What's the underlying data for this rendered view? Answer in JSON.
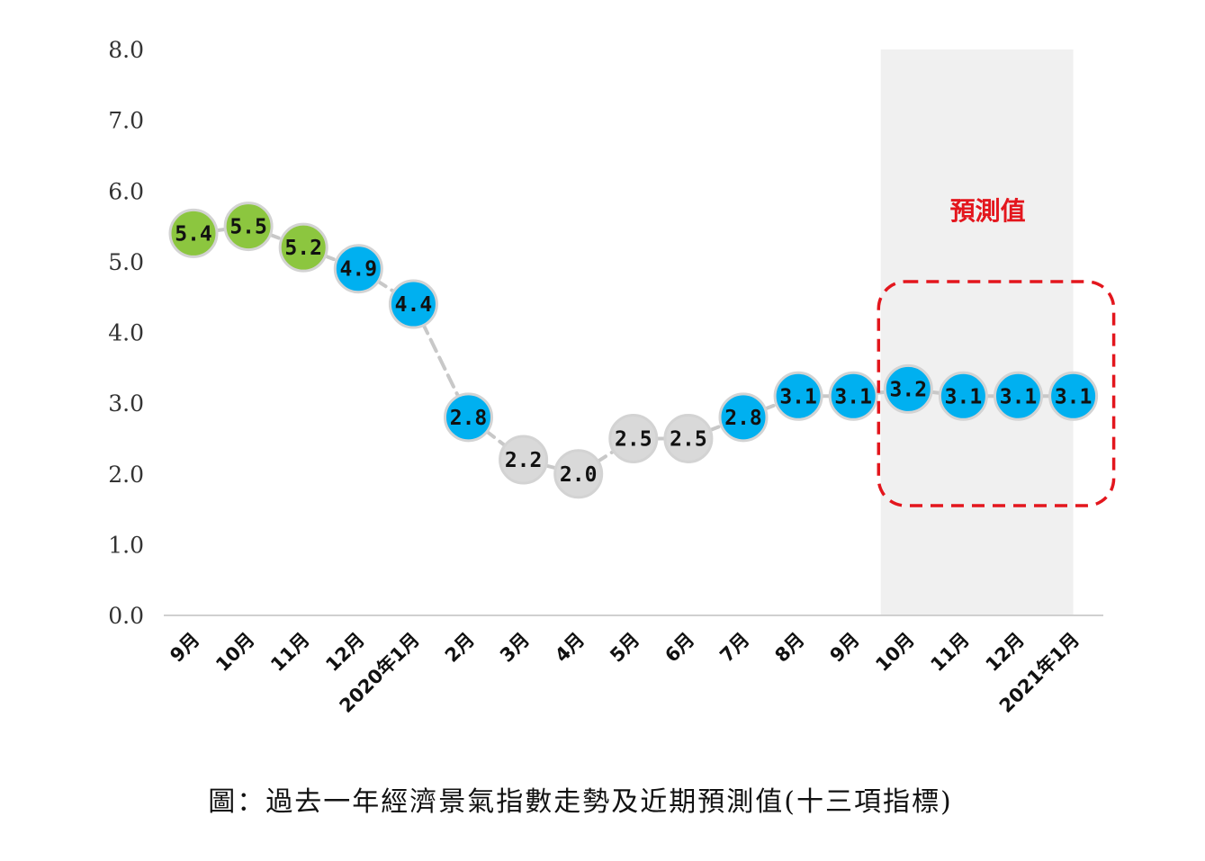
{
  "chart_data": {
    "type": "line",
    "categories": [
      "9月",
      "10月",
      "11月",
      "12月",
      "2020年1月",
      "2月",
      "3月",
      "4月",
      "5月",
      "6月",
      "7月",
      "8月",
      "9月",
      "10月",
      "11月",
      "12月",
      "2021年1月"
    ],
    "values": [
      5.4,
      5.5,
      5.2,
      4.9,
      4.4,
      2.8,
      2.2,
      2.0,
      2.5,
      2.5,
      2.8,
      3.1,
      3.1,
      3.2,
      3.1,
      3.1,
      3.1
    ],
    "value_labels": [
      "5.4",
      "5.5",
      "5.2",
      "4.9",
      "4.4",
      "2.8",
      "2.2",
      "2.0",
      "2.5",
      "2.5",
      "2.8",
      "3.1",
      "3.1",
      "3.2",
      "3.1",
      "3.1",
      "3.1"
    ],
    "point_colors": [
      "#8cc63f",
      "#8cc63f",
      "#8cc63f",
      "#00b0f0",
      "#00b0f0",
      "#00b0f0",
      "#d9d9d9",
      "#d9d9d9",
      "#d9d9d9",
      "#d9d9d9",
      "#00b0f0",
      "#00b0f0",
      "#00b0f0",
      "#00b0f0",
      "#00b0f0",
      "#00b0f0",
      "#00b0f0"
    ],
    "ylim": [
      0,
      8
    ],
    "yticks": [
      "0.0",
      "1.0",
      "2.0",
      "3.0",
      "4.0",
      "5.0",
      "6.0",
      "7.0",
      "8.0"
    ],
    "forecast_start_index": 13,
    "forecast_label": "預測值",
    "forecast_label_color": "#e3161d",
    "forecast_shade_color": "#f0f0f0",
    "line_color": "#c8c8c8",
    "grid": false,
    "title": "",
    "xlabel": "",
    "ylabel": ""
  },
  "caption": "圖：過去一年經濟景氣指數走勢及近期預測值(十三項指標)"
}
